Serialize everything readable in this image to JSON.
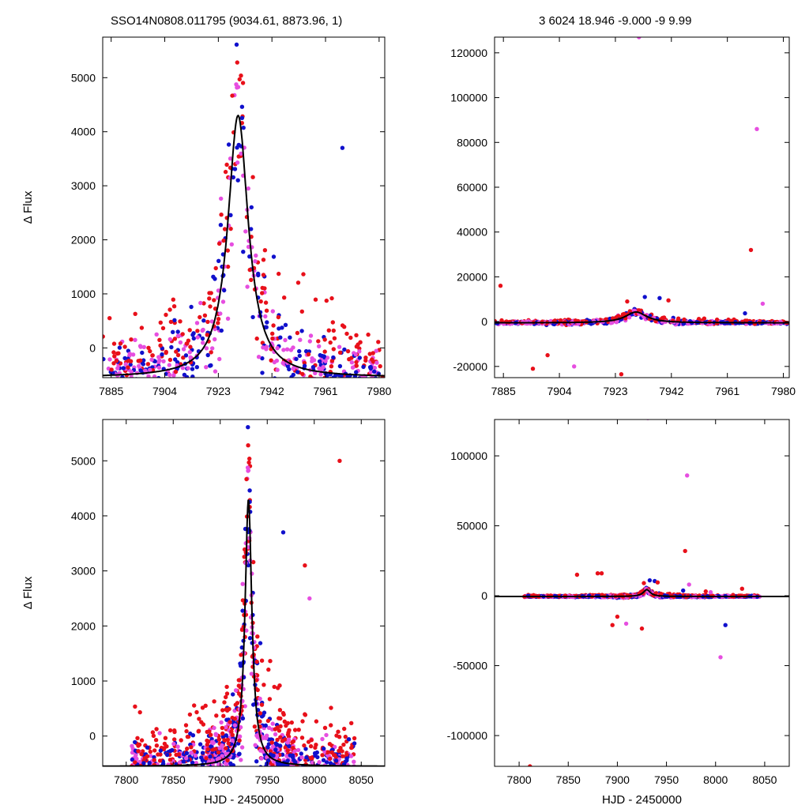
{
  "header": {
    "left": "SSO14N0808.011795 (9034.61, 8873.96,    1)",
    "right": "3   6024   18.946   -9.000   -9   9.99"
  },
  "colors": {
    "red": "#e8101a",
    "blue": "#1010cc",
    "magenta": "#e64ee0",
    "model": "#000000"
  },
  "chart_data": [
    {
      "id": "top-left",
      "type": "scatter",
      "xlim": [
        7882,
        7982
      ],
      "ylim": [
        -550,
        5750
      ],
      "xticks": [
        7885,
        7904,
        7923,
        7942,
        7961,
        7980
      ],
      "xtick_labels": [
        "7885",
        "7904",
        "7923",
        "7942",
        "7961",
        "7980"
      ],
      "yticks": [
        0,
        1000,
        2000,
        3000,
        4000,
        5000
      ],
      "ytick_labels": [
        "0",
        "1000",
        "2000",
        "3000",
        "4000",
        "5000"
      ],
      "xlabel": "",
      "ylabel": "Δ Flux",
      "model": {
        "peak_x": 7930,
        "peak_y": 4300,
        "width": 4.4,
        "base": -550
      }
    },
    {
      "id": "top-right",
      "type": "scatter",
      "xlim": [
        7882,
        7982
      ],
      "ylim": [
        -25000,
        127000
      ],
      "xticks": [
        7885,
        7904,
        7923,
        7942,
        7961,
        7980
      ],
      "xtick_labels": [
        "7885",
        "7904",
        "7923",
        "7942",
        "7961",
        "7980"
      ],
      "yticks": [
        -20000,
        0,
        20000,
        40000,
        60000,
        80000,
        100000,
        120000
      ],
      "ytick_labels": [
        "-20000",
        "0",
        "20000",
        "40000",
        "60000",
        "80000",
        "100000",
        "120000"
      ],
      "xlabel": "",
      "ylabel": "",
      "model": {
        "peak_x": 7930,
        "peak_y": 4300,
        "width": 4.4,
        "base": -550
      }
    },
    {
      "id": "bottom-left",
      "type": "scatter",
      "xlim": [
        7775,
        8075
      ],
      "ylim": [
        -550,
        5750
      ],
      "xticks": [
        7800,
        7850,
        7900,
        7950,
        8000,
        8050
      ],
      "xtick_labels": [
        "7800",
        "7850",
        "7900",
        "7950",
        "8000",
        "8050"
      ],
      "yticks": [
        0,
        1000,
        2000,
        3000,
        4000,
        5000
      ],
      "ytick_labels": [
        "0",
        "1000",
        "2000",
        "3000",
        "4000",
        "5000"
      ],
      "xlabel": "HJD - 2450000",
      "ylabel": "Δ Flux",
      "model": {
        "peak_x": 7930,
        "peak_y": 4300,
        "width": 4.4,
        "base": -550
      }
    },
    {
      "id": "bottom-right",
      "type": "scatter",
      "xlim": [
        7775,
        8075
      ],
      "ylim": [
        -122000,
        126000
      ],
      "xticks": [
        7800,
        7850,
        7900,
        7950,
        8000,
        8050
      ],
      "xtick_labels": [
        "7800",
        "7850",
        "7900",
        "7950",
        "8000",
        "8050"
      ],
      "yticks": [
        -100000,
        -50000,
        0,
        50000,
        100000
      ],
      "ytick_labels": [
        "-100000",
        "-50000",
        "0",
        "50000",
        "100000"
      ],
      "xlabel": "HJD - 2450000",
      "ylabel": "",
      "model": {
        "peak_x": 7930,
        "peak_y": 4300,
        "width": 4.4,
        "base": -550
      }
    }
  ]
}
